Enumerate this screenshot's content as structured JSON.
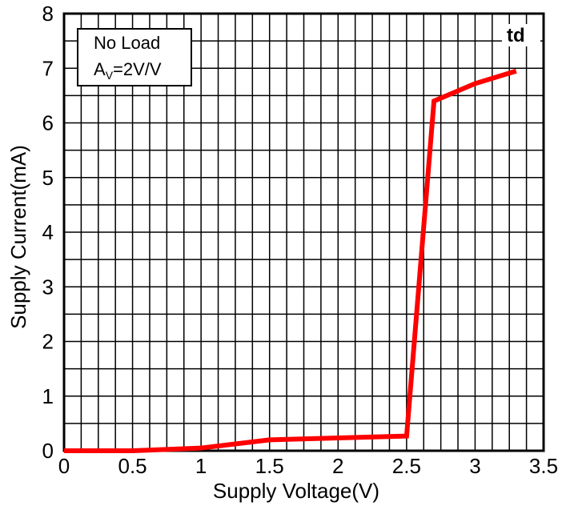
{
  "chart_data": {
    "type": "line",
    "xlabel": "Supply Voltage(V)",
    "ylabel": "Supply Current(mA)",
    "xlim": [
      0,
      3.5
    ],
    "ylim": [
      0,
      8
    ],
    "x_ticks": [
      "0",
      "0.5",
      "1",
      "1.5",
      "2",
      "2.5",
      "3",
      "3.5"
    ],
    "y_ticks": [
      "0",
      "1",
      "2",
      "3",
      "4",
      "5",
      "6",
      "7",
      "8"
    ],
    "grid": true,
    "series": [
      {
        "color": "#ff0000",
        "points": [
          {
            "x": 0,
            "y": 0
          },
          {
            "x": 0.5,
            "y": 0.0
          },
          {
            "x": 1.0,
            "y": 0.05
          },
          {
            "x": 1.5,
            "y": 0.2
          },
          {
            "x": 2.5,
            "y": 0.27
          },
          {
            "x": 2.7,
            "y": 6.4
          },
          {
            "x": 3.0,
            "y": 6.72
          },
          {
            "x": 3.3,
            "y": 6.95
          }
        ]
      }
    ],
    "annotations": {
      "condition_line1": "No Load",
      "gain_prefix": "A",
      "gain_sub": "V",
      "gain_suffix": "=2V/V",
      "corner_label": "td"
    }
  }
}
